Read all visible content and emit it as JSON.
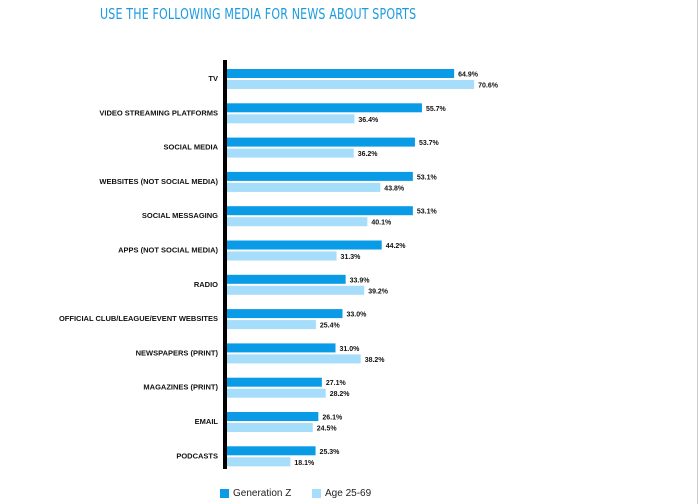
{
  "chart_data": {
    "type": "bar",
    "orientation": "horizontal",
    "title": "USE THE FOLLOWING MEDIA FOR NEWS ABOUT SPORTS",
    "categories": [
      "TV",
      "VIDEO STREAMING PLATFORMS",
      "SOCIAL MEDIA",
      "WEBSITES (NOT SOCIAL MEDIA)",
      "SOCIAL MESSAGING",
      "APPS (NOT SOCIAL MEDIA)",
      "RADIO",
      "OFFICIAL CLUB/LEAGUE/EVENT WEBSITES",
      "NEWSPAPERS (PRINT)",
      "MAGAZINES (PRINT)",
      "EMAIL",
      "PODCASTS"
    ],
    "series": [
      {
        "name": "Generation Z",
        "color": "#0a9be6",
        "values": [
          64.9,
          55.7,
          53.7,
          53.1,
          53.1,
          44.2,
          33.9,
          33.0,
          31.0,
          27.1,
          26.1,
          25.3
        ]
      },
      {
        "name": "Age 25-69",
        "color": "#a6ddfa",
        "values": [
          70.6,
          36.4,
          36.2,
          43.8,
          40.1,
          31.3,
          39.2,
          25.4,
          38.2,
          28.2,
          24.5,
          18.1
        ]
      }
    ],
    "value_suffix": "%",
    "legend_position": "bottom-left",
    "grid": false
  }
}
